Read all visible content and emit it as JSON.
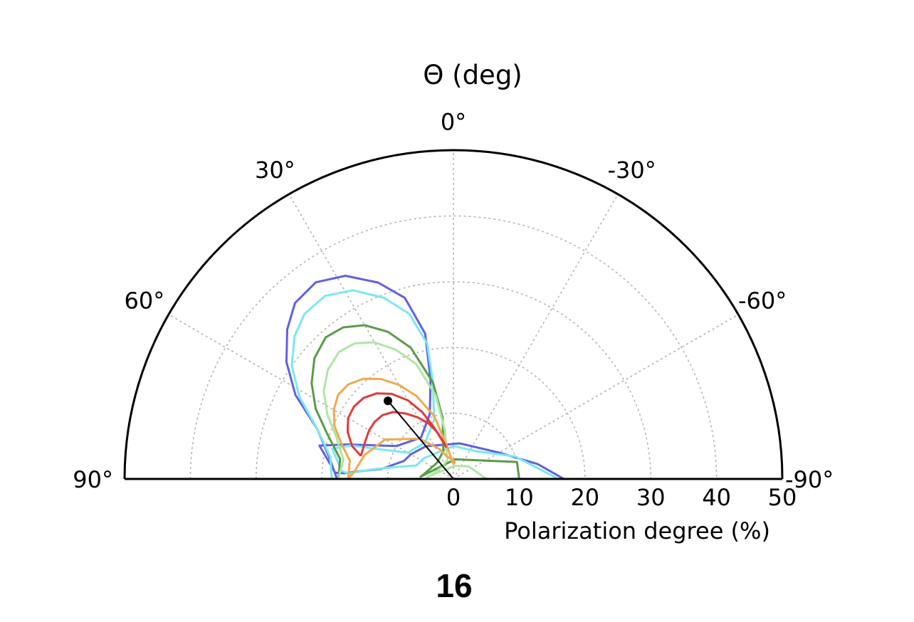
{
  "chart_data": {
    "type": "polar-contour",
    "title": "Θ (deg)",
    "radial_axis": {
      "label": "Polarization degree (%)",
      "range": [
        0,
        50
      ],
      "ticks": [
        0,
        10,
        20,
        30,
        40,
        50
      ],
      "tick_labels": [
        "0",
        "10",
        "20",
        "30",
        "40",
        "50"
      ]
    },
    "angular_axis": {
      "range": [
        -90,
        90
      ],
      "ticks": [
        90,
        60,
        30,
        0,
        -30,
        -60,
        -90
      ],
      "tick_labels": [
        "90°",
        "60°",
        "30°",
        "0°",
        "-30°",
        "-60°",
        "-90°"
      ]
    },
    "grid": true,
    "best_fit": {
      "angle_deg": 40,
      "polarization": 15.5
    },
    "contours": [
      {
        "level": 1,
        "color": "#6060e0",
        "points": [
          [
            90,
            17.7
          ],
          [
            80,
            19.2
          ],
          [
            70,
            22
          ],
          [
            62,
            27.2
          ],
          [
            55,
            31
          ],
          [
            48,
            34
          ],
          [
            42,
            36
          ],
          [
            35,
            36.5
          ],
          [
            28,
            35
          ],
          [
            21,
            32
          ],
          [
            15,
            28.5
          ],
          [
            11,
            22.5
          ],
          [
            13,
            15.5
          ],
          [
            20,
            10.5
          ],
          [
            38,
            8
          ],
          [
            60,
            10
          ],
          [
            72,
            17
          ],
          [
            76,
            21
          ],
          [
            87,
            18
          ],
          [
            87,
            16.5
          ],
          [
            85.6,
            14.7
          ],
          [
            82,
            11
          ],
          [
            75,
            9
          ],
          [
            70,
            8
          ],
          [
            60,
            7.5
          ],
          [
            40,
            6.5
          ],
          [
            -10,
            5.5
          ],
          [
            -60,
            8
          ],
          [
            -80,
            13
          ],
          [
            -90,
            16.8
          ]
        ]
      },
      {
        "level": 2,
        "color": "#7ae8f0",
        "points": [
          [
            90,
            18.5
          ],
          [
            80,
            19
          ],
          [
            70,
            22
          ],
          [
            62,
            26.5
          ],
          [
            55,
            30
          ],
          [
            48,
            32.5
          ],
          [
            42,
            33.8
          ],
          [
            35,
            34
          ],
          [
            28,
            32.5
          ],
          [
            21,
            29.5
          ],
          [
            15,
            26
          ],
          [
            11,
            21
          ],
          [
            12,
            15
          ],
          [
            18,
            9.5
          ],
          [
            38,
            7
          ],
          [
            60,
            8
          ],
          [
            68,
            12
          ],
          [
            72,
            16.5
          ],
          [
            76,
            19
          ],
          [
            86,
            17
          ],
          [
            87,
            16
          ],
          [
            84,
            13
          ],
          [
            80,
            10
          ],
          [
            70,
            6
          ],
          [
            55,
            5.5
          ],
          [
            0,
            5
          ],
          [
            -40,
            5.5
          ],
          [
            -70,
            10
          ],
          [
            -90,
            16
          ]
        ]
      },
      {
        "level": 3,
        "color": "#5a9a4a",
        "points": [
          [
            90,
            17.5
          ],
          [
            80,
            17.5
          ],
          [
            70,
            20.5
          ],
          [
            63,
            23.5
          ],
          [
            56,
            26
          ],
          [
            49,
            28
          ],
          [
            42,
            29
          ],
          [
            36,
            28.5
          ],
          [
            30,
            27
          ],
          [
            24,
            24.5
          ],
          [
            18,
            21
          ],
          [
            12,
            15
          ],
          [
            10,
            9.5
          ],
          [
            20,
            4.5
          ],
          [
            45,
            3.5
          ],
          [
            80,
            4.5
          ],
          [
            86,
            5
          ],
          [
            -5,
            3
          ],
          [
            -75,
            10
          ],
          [
            -90,
            10
          ]
        ]
      },
      {
        "level": 4,
        "color": "#aee6a6",
        "points": [
          [
            90,
            17.5
          ],
          [
            80,
            17
          ],
          [
            70,
            19
          ],
          [
            63,
            21.5
          ],
          [
            56,
            23.8
          ],
          [
            49,
            25.3
          ],
          [
            42,
            26
          ],
          [
            36,
            25.5
          ],
          [
            30,
            24
          ],
          [
            24,
            21.5
          ],
          [
            18,
            18.4
          ],
          [
            12,
            13
          ],
          [
            10,
            7.5
          ],
          [
            18,
            3
          ],
          [
            45,
            2.5
          ],
          [
            80,
            3.5
          ],
          [
            86,
            4
          ],
          [
            -5,
            2
          ],
          [
            -50,
            3
          ],
          [
            -90,
            5
          ]
        ]
      },
      {
        "level": 5,
        "color": "#f0a850",
        "points": [
          [
            90,
            16
          ],
          [
            80,
            16
          ],
          [
            72,
            18
          ],
          [
            66,
            19.8
          ],
          [
            60,
            21
          ],
          [
            54,
            21.7
          ],
          [
            48,
            21.5
          ],
          [
            42,
            20.5
          ],
          [
            36,
            18.8
          ],
          [
            30,
            16.5
          ],
          [
            24,
            13.8
          ],
          [
            17,
            10
          ],
          [
            11,
            5
          ],
          [
            3,
            2.6
          ],
          [
            0,
            2.3
          ],
          [
            -3,
            2.4
          ],
          [
            -5,
            2.6
          ],
          [
            5,
            3
          ],
          [
            15,
            3.5
          ],
          [
            25,
            5
          ],
          [
            40,
            8
          ],
          [
            60,
            12
          ],
          [
            75,
            14
          ],
          [
            85,
            15
          ],
          [
            90,
            16
          ]
        ]
      },
      {
        "level": 6,
        "color": "#e03a3a",
        "points": [
          [
            76,
            14.5
          ],
          [
            72,
            16.2
          ],
          [
            66,
            17.6
          ],
          [
            60,
            18.5
          ],
          [
            54,
            18.7
          ],
          [
            48,
            18.4
          ],
          [
            42,
            17.5
          ],
          [
            36,
            16
          ],
          [
            30,
            13.8
          ],
          [
            25,
            11.2
          ],
          [
            21,
            8.6
          ],
          [
            16,
            6
          ],
          [
            13,
            5
          ],
          [
            15,
            5.8
          ],
          [
            19,
            7.5
          ],
          [
            24,
            9.2
          ],
          [
            30,
            10.8
          ],
          [
            36,
            12.3
          ],
          [
            42,
            13.7
          ],
          [
            48,
            14.5
          ],
          [
            54,
            14.8
          ],
          [
            60,
            14.8
          ],
          [
            66,
            14.6
          ],
          [
            72,
            14.5
          ],
          [
            76,
            14.5
          ]
        ]
      }
    ]
  },
  "panel_label": "16"
}
